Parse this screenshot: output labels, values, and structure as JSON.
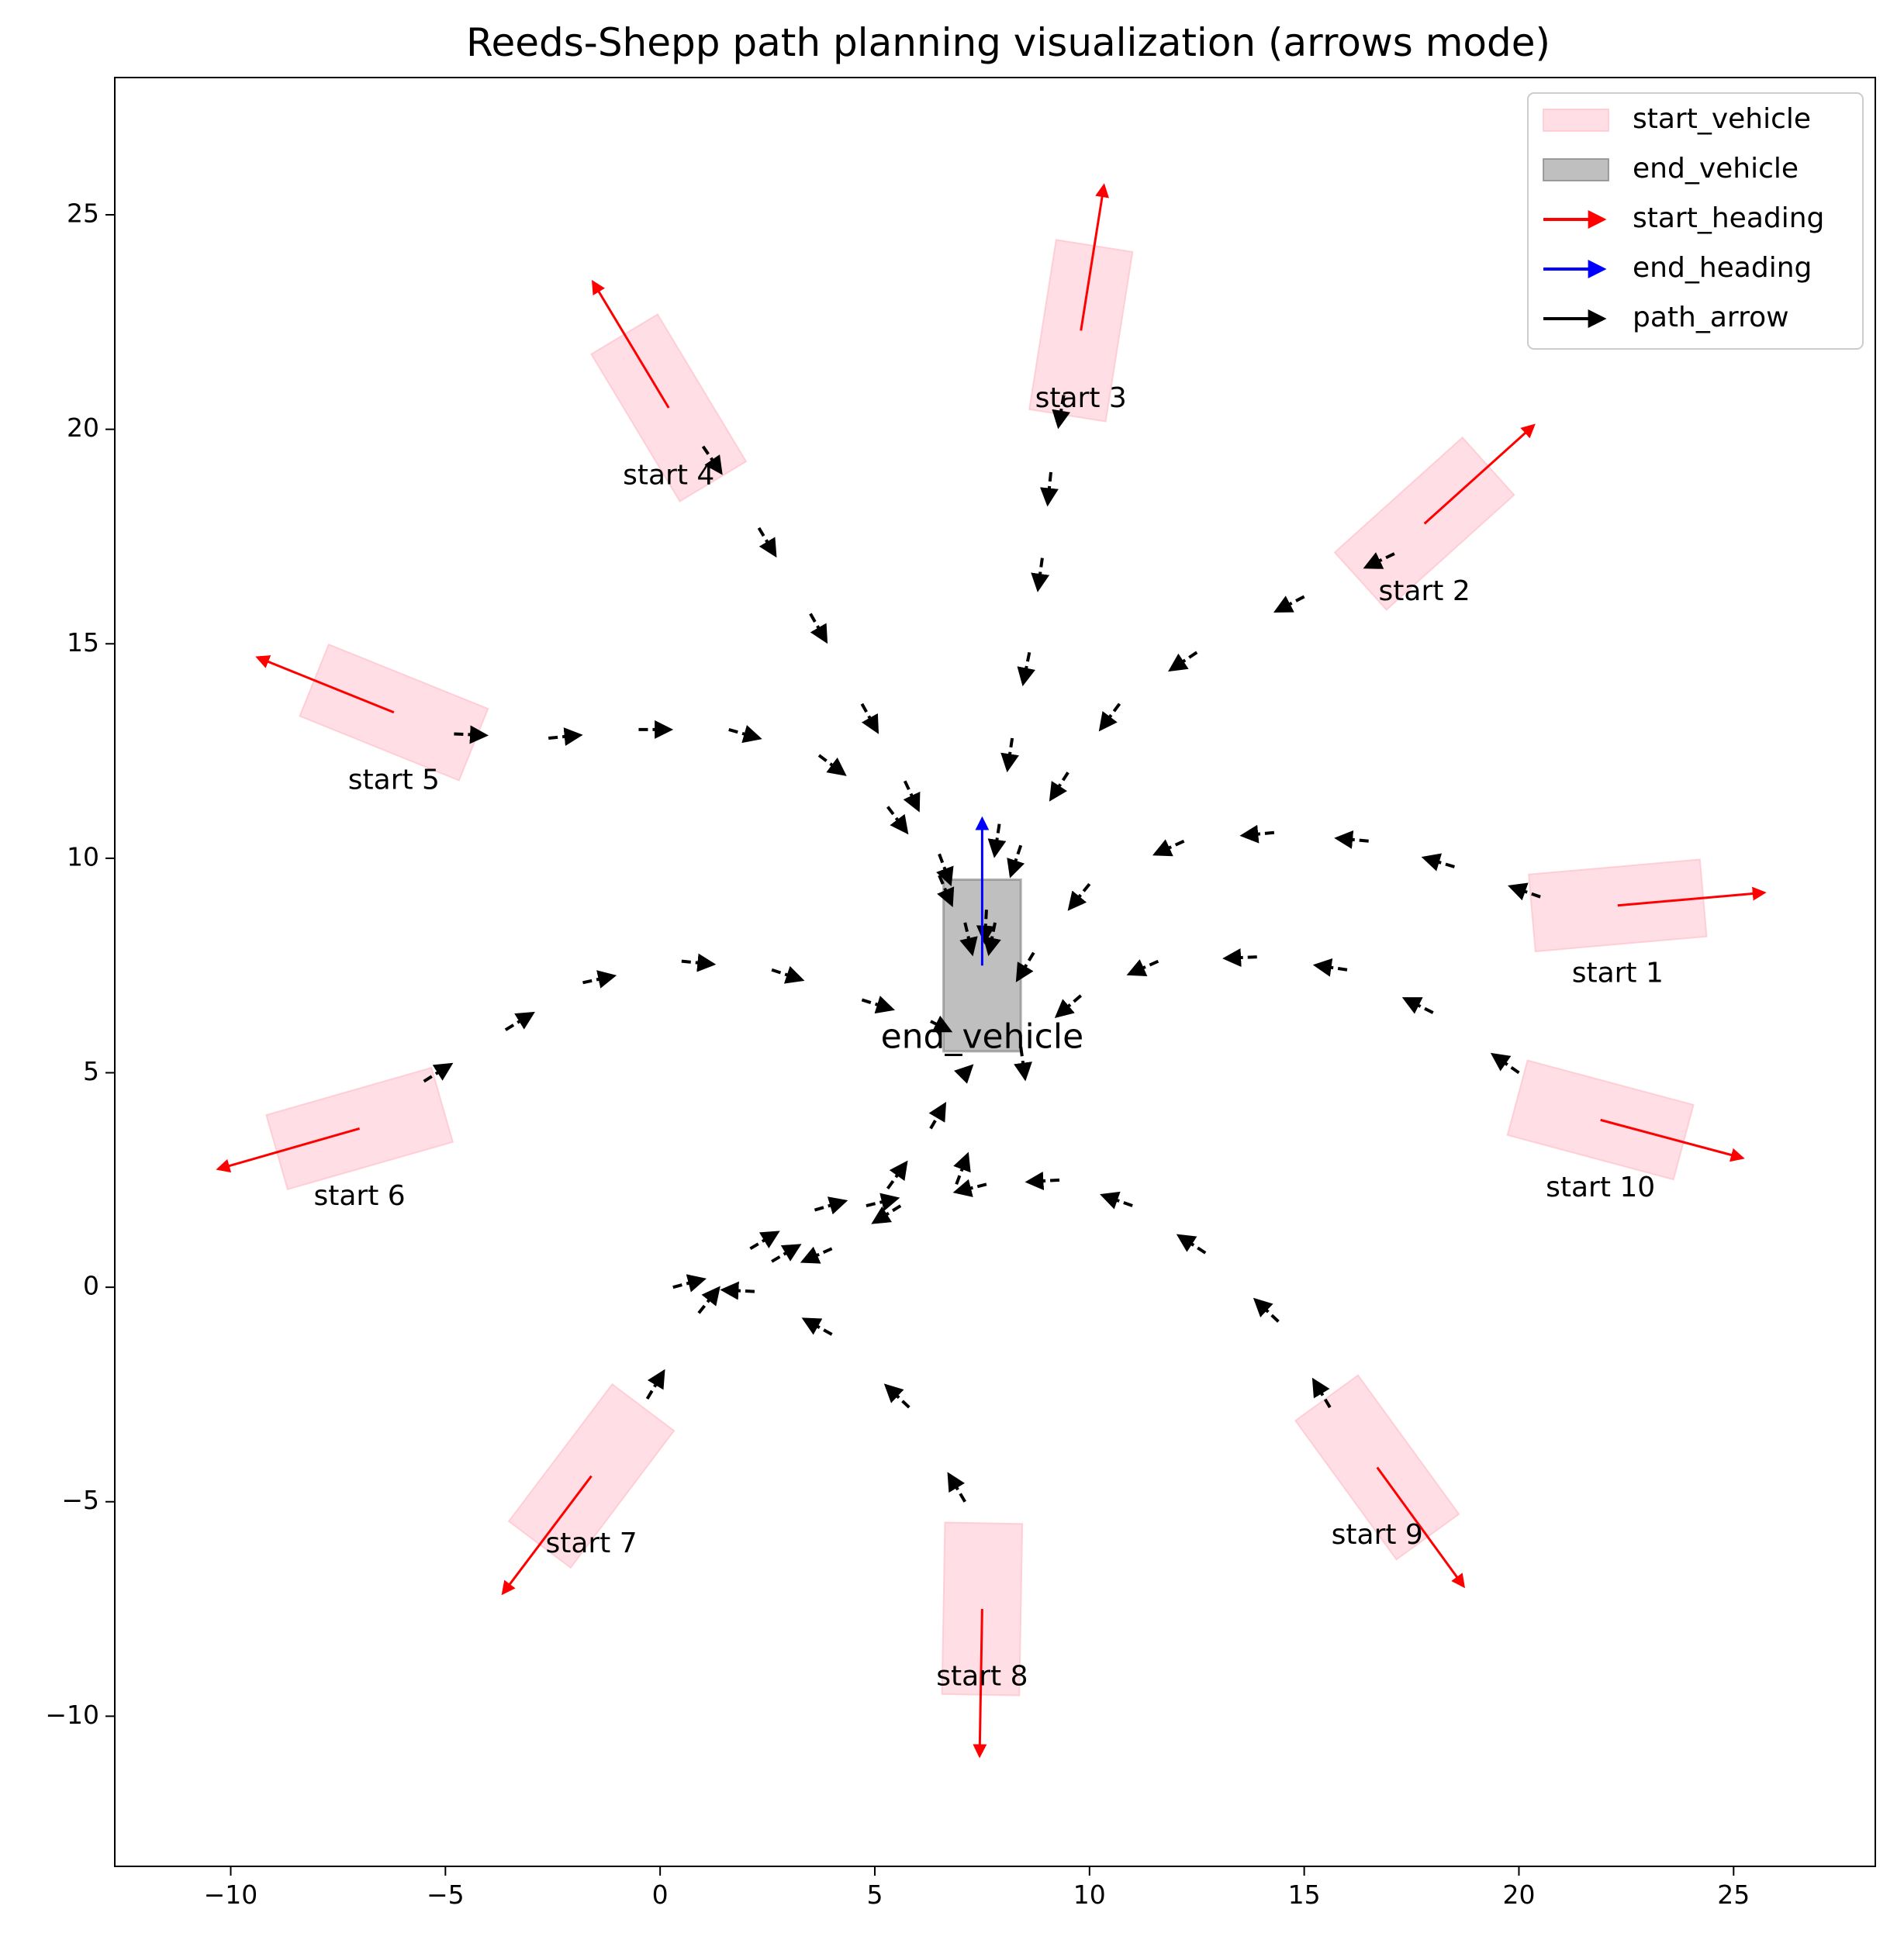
{
  "chart_data": {
    "type": "scatter",
    "title": "Reeds-Shepp path planning visualization (arrows mode)",
    "xlabel": "",
    "ylabel": "",
    "xlim": [
      -12.7,
      28.3
    ],
    "ylim": [
      -13.5,
      28.2
    ],
    "xticks": [
      -10,
      -5,
      0,
      5,
      10,
      15,
      20,
      25
    ],
    "yticks": [
      -10,
      -5,
      0,
      5,
      10,
      15,
      20,
      25
    ],
    "grid": false,
    "legend_position": "top-right",
    "colors": {
      "start_vehicle": "#ffc0cb",
      "end_vehicle": "#808080",
      "start_heading": "#ff0000",
      "end_heading": "#0000ff",
      "path_arrow": "#000000"
    },
    "legend": [
      {
        "label": "start_vehicle",
        "kind": "patch",
        "color": "#ffc0cb"
      },
      {
        "label": "end_vehicle",
        "kind": "patch",
        "color": "#808080"
      },
      {
        "label": "start_heading",
        "kind": "arrow",
        "color": "#ff0000"
      },
      {
        "label": "end_heading",
        "kind": "arrow",
        "color": "#0000ff"
      },
      {
        "label": "path_arrow",
        "kind": "arrow",
        "color": "#000000"
      }
    ],
    "vehicle_length": 4.0,
    "vehicle_width": 1.8,
    "end_vehicle": {
      "label": "end_vehicle",
      "x": 7.5,
      "y": 7.5,
      "heading_deg": 90
    },
    "starts": [
      {
        "label": "start 1",
        "x": 22.3,
        "y": 8.9,
        "heading_deg": 5
      },
      {
        "label": "start 2",
        "x": 17.8,
        "y": 17.8,
        "heading_deg": 42
      },
      {
        "label": "start 3",
        "x": 9.8,
        "y": 22.3,
        "heading_deg": 81
      },
      {
        "label": "start 4",
        "x": 0.2,
        "y": 20.5,
        "heading_deg": 121
      },
      {
        "label": "start 5",
        "x": -6.2,
        "y": 13.4,
        "heading_deg": 158
      },
      {
        "label": "start 6",
        "x": -7.0,
        "y": 3.7,
        "heading_deg": 196
      },
      {
        "label": "start 7",
        "x": -1.6,
        "y": -4.4,
        "heading_deg": 233
      },
      {
        "label": "start 8",
        "x": 7.5,
        "y": -7.5,
        "heading_deg": 269
      },
      {
        "label": "start 9",
        "x": 16.7,
        "y": -4.2,
        "heading_deg": 306
      },
      {
        "label": "start 10",
        "x": 21.9,
        "y": 3.9,
        "heading_deg": 345
      }
    ],
    "paths": [
      {
        "label": "start 1",
        "points": [
          [
            20.5,
            9.1
          ],
          [
            18.5,
            9.8
          ],
          [
            16.5,
            10.4
          ],
          [
            14.3,
            10.6
          ],
          [
            12.2,
            10.4
          ],
          [
            10.0,
            9.4
          ],
          [
            8.7,
            7.8
          ],
          [
            7.8,
            6.3
          ]
        ]
      },
      {
        "label": "start 2",
        "points": [
          [
            17.1,
            17.1
          ],
          [
            15.0,
            16.1
          ],
          [
            12.5,
            14.8
          ],
          [
            10.7,
            13.6
          ],
          [
            9.5,
            12.0
          ],
          [
            8.4,
            10.3
          ],
          [
            7.8,
            8.5
          ],
          [
            7.5,
            7.0
          ]
        ]
      },
      {
        "label": "start 3",
        "points": [
          [
            9.4,
            20.8
          ],
          [
            9.1,
            19.0
          ],
          [
            8.9,
            17.0
          ],
          [
            8.6,
            14.8
          ],
          [
            8.2,
            12.8
          ],
          [
            7.9,
            10.8
          ],
          [
            7.6,
            8.8
          ],
          [
            7.5,
            7.0
          ]
        ]
      },
      {
        "label": "start 4",
        "points": [
          [
            1.0,
            19.6
          ],
          [
            2.3,
            17.7
          ],
          [
            3.5,
            15.7
          ],
          [
            4.7,
            13.6
          ],
          [
            5.7,
            11.8
          ],
          [
            6.5,
            10.1
          ],
          [
            7.1,
            8.5
          ],
          [
            7.5,
            6.8
          ]
        ]
      },
      {
        "label": "start 5",
        "points": [
          [
            -4.8,
            12.9
          ],
          [
            -2.6,
            12.8
          ],
          [
            -0.5,
            13.0
          ],
          [
            1.6,
            13.0
          ],
          [
            3.7,
            12.4
          ],
          [
            5.3,
            11.2
          ],
          [
            6.5,
            9.6
          ],
          [
            7.4,
            7.5
          ]
        ]
      },
      {
        "label": "start 6",
        "points": [
          [
            -5.5,
            4.8
          ],
          [
            -3.6,
            6.0
          ],
          [
            -1.8,
            7.1
          ],
          [
            0.5,
            7.6
          ],
          [
            2.6,
            7.4
          ],
          [
            4.7,
            6.7
          ],
          [
            6.3,
            6.2
          ],
          [
            7.3,
            5.7
          ]
        ]
      },
      {
        "label": "start 7",
        "points": [
          [
            -0.3,
            -2.6
          ],
          [
            0.9,
            -0.6
          ],
          [
            2.1,
            0.9
          ],
          [
            3.6,
            1.8
          ],
          [
            5.3,
            2.3
          ],
          [
            6.3,
            3.7
          ],
          [
            7.0,
            4.9
          ],
          [
            7.5,
            5.4
          ]
        ]
      },
      {
        "label": "start 8",
        "points": [
          [
            7.1,
            -5.0
          ],
          [
            5.8,
            -2.8
          ],
          [
            4.0,
            -1.1
          ],
          [
            2.2,
            -0.1
          ],
          [
            0.3,
            0.0
          ],
          [
            2.6,
            0.6
          ],
          [
            4.8,
            1.9
          ],
          [
            6.9,
            2.4
          ],
          [
            7.8,
            4.8
          ]
        ]
      },
      {
        "label": "start 9",
        "points": [
          [
            15.6,
            -2.8
          ],
          [
            14.4,
            -0.8
          ],
          [
            12.7,
            0.8
          ],
          [
            11.0,
            1.9
          ],
          [
            9.3,
            2.5
          ],
          [
            7.6,
            2.4
          ],
          [
            5.6,
            1.9
          ],
          [
            4.0,
            0.9
          ],
          [
            2.2,
            0.1
          ]
        ]
      },
      {
        "label": "start 10",
        "points": [
          [
            20.0,
            5.0
          ],
          [
            18.0,
            6.4
          ],
          [
            16.0,
            7.4
          ],
          [
            13.9,
            7.7
          ],
          [
            11.6,
            7.6
          ],
          [
            9.8,
            6.8
          ],
          [
            8.4,
            5.6
          ],
          [
            8.7,
            3.4
          ]
        ]
      }
    ]
  }
}
